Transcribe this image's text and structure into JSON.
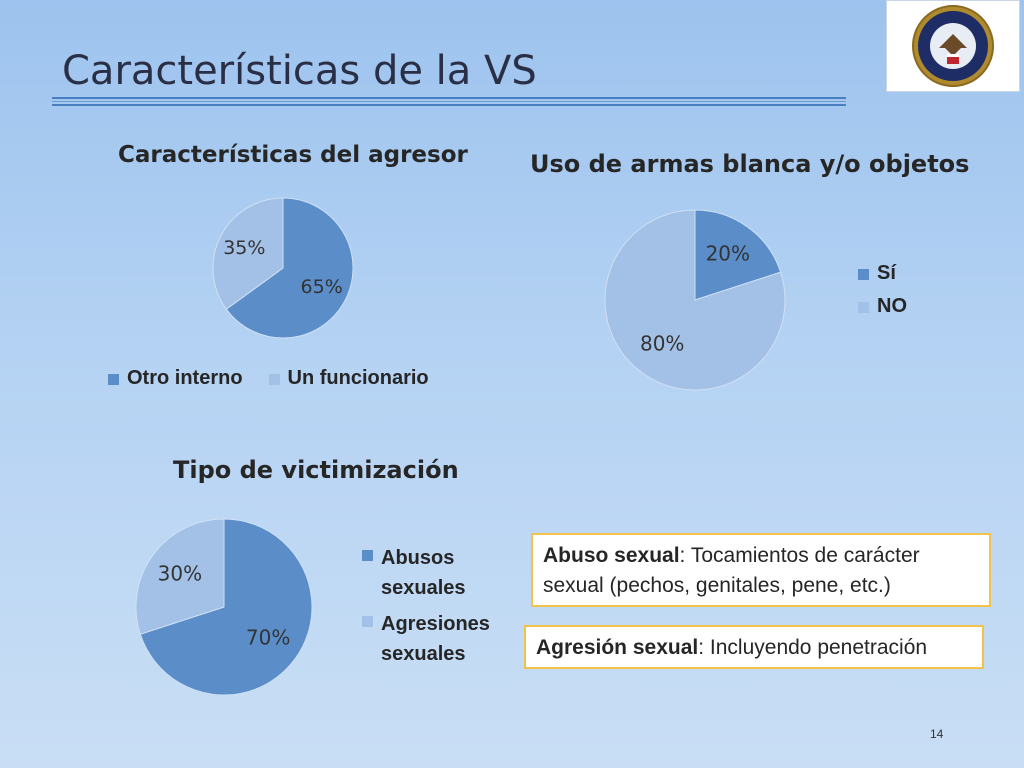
{
  "slide": {
    "title": "Características de la VS",
    "page_number": "14",
    "colors": {
      "dark_slice": "#5b8ec9",
      "light_slice": "#a3c1e6",
      "box_border": "#f2c34a"
    }
  },
  "definitions": [
    {
      "term": "Abuso sexual",
      "text": ": Tocamientos de carácter sexual  (pechos, genitales, pene, etc.)"
    },
    {
      "term": "Agresión sexual",
      "text": ": Incluyendo penetración"
    }
  ],
  "chart_data": [
    {
      "type": "pie",
      "title": "Características del agresor",
      "categories": [
        "Otro interno",
        "Un funcionario"
      ],
      "values": [
        65,
        35
      ],
      "data_labels": [
        "65%",
        "35%"
      ],
      "legend_position": "bottom"
    },
    {
      "type": "pie",
      "title": "Uso de armas blanca y/o objetos",
      "categories": [
        "Sí",
        "NO"
      ],
      "values": [
        20,
        80
      ],
      "data_labels": [
        "20%",
        "80%"
      ],
      "legend_position": "right"
    },
    {
      "type": "pie",
      "title": "Tipo de victimización",
      "categories": [
        "Abusos sexuales",
        "Agresiones sexuales"
      ],
      "values": [
        70,
        30
      ],
      "data_labels": [
        "70%",
        "30%"
      ],
      "legend_position": "right"
    }
  ]
}
